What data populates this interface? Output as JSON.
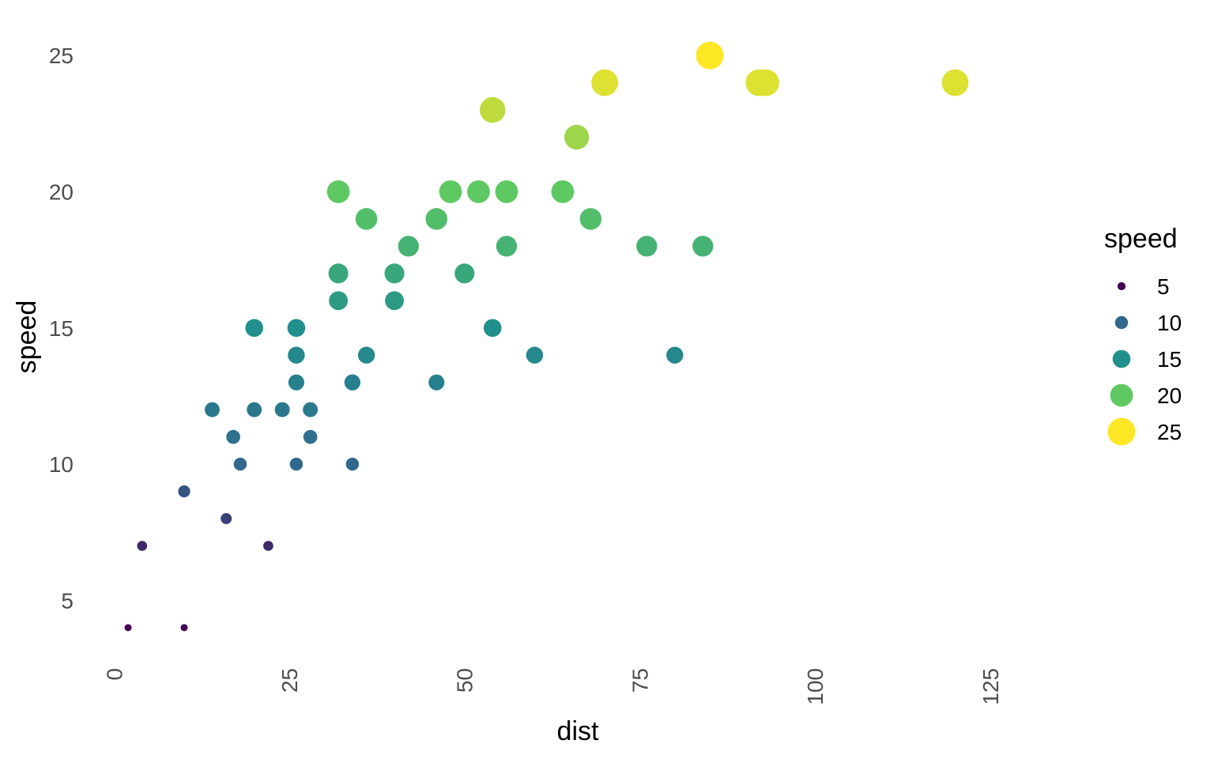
{
  "chart_data": {
    "type": "scatter",
    "title": "",
    "xlabel": "dist",
    "ylabel": "speed",
    "xlim": [
      -5,
      139
    ],
    "ylim": [
      2.95,
      26.05
    ],
    "x_ticks": [
      0,
      25,
      50,
      75,
      100,
      125
    ],
    "y_ticks": [
      5,
      10,
      15,
      20,
      25
    ],
    "grid": false,
    "color_scale": "viridis",
    "legend": {
      "title": "speed",
      "position": "right",
      "entries": [
        {
          "label": "5",
          "value": 5,
          "color": "#440154"
        },
        {
          "label": "10",
          "value": 10,
          "color": "#31688e"
        },
        {
          "label": "15",
          "value": 15,
          "color": "#21908c"
        },
        {
          "label": "20",
          "value": 20,
          "color": "#5ec962"
        },
        {
          "label": "25",
          "value": 25,
          "color": "#fde725"
        }
      ]
    },
    "size_range": [
      4,
      25
    ],
    "series": [
      {
        "points": [
          {
            "x": 2,
            "y": 4
          },
          {
            "x": 10,
            "y": 4
          },
          {
            "x": 4,
            "y": 7
          },
          {
            "x": 22,
            "y": 7
          },
          {
            "x": 16,
            "y": 8
          },
          {
            "x": 10,
            "y": 9
          },
          {
            "x": 18,
            "y": 10
          },
          {
            "x": 26,
            "y": 10
          },
          {
            "x": 34,
            "y": 10
          },
          {
            "x": 17,
            "y": 11
          },
          {
            "x": 28,
            "y": 11
          },
          {
            "x": 14,
            "y": 12
          },
          {
            "x": 20,
            "y": 12
          },
          {
            "x": 24,
            "y": 12
          },
          {
            "x": 28,
            "y": 12
          },
          {
            "x": 26,
            "y": 13
          },
          {
            "x": 34,
            "y": 13
          },
          {
            "x": 34,
            "y": 13
          },
          {
            "x": 46,
            "y": 13
          },
          {
            "x": 26,
            "y": 14
          },
          {
            "x": 36,
            "y": 14
          },
          {
            "x": 60,
            "y": 14
          },
          {
            "x": 80,
            "y": 14
          },
          {
            "x": 20,
            "y": 15
          },
          {
            "x": 26,
            "y": 15
          },
          {
            "x": 54,
            "y": 15
          },
          {
            "x": 32,
            "y": 16
          },
          {
            "x": 40,
            "y": 16
          },
          {
            "x": 32,
            "y": 17
          },
          {
            "x": 40,
            "y": 17
          },
          {
            "x": 50,
            "y": 17
          },
          {
            "x": 42,
            "y": 18
          },
          {
            "x": 56,
            "y": 18
          },
          {
            "x": 76,
            "y": 18
          },
          {
            "x": 84,
            "y": 18
          },
          {
            "x": 36,
            "y": 19
          },
          {
            "x": 46,
            "y": 19
          },
          {
            "x": 68,
            "y": 19
          },
          {
            "x": 32,
            "y": 20
          },
          {
            "x": 48,
            "y": 20
          },
          {
            "x": 52,
            "y": 20
          },
          {
            "x": 56,
            "y": 20
          },
          {
            "x": 64,
            "y": 20
          },
          {
            "x": 66,
            "y": 22
          },
          {
            "x": 54,
            "y": 23
          },
          {
            "x": 70,
            "y": 24
          },
          {
            "x": 92,
            "y": 24
          },
          {
            "x": 93,
            "y": 24
          },
          {
            "x": 120,
            "y": 24
          },
          {
            "x": 85,
            "y": 25
          }
        ]
      }
    ]
  }
}
